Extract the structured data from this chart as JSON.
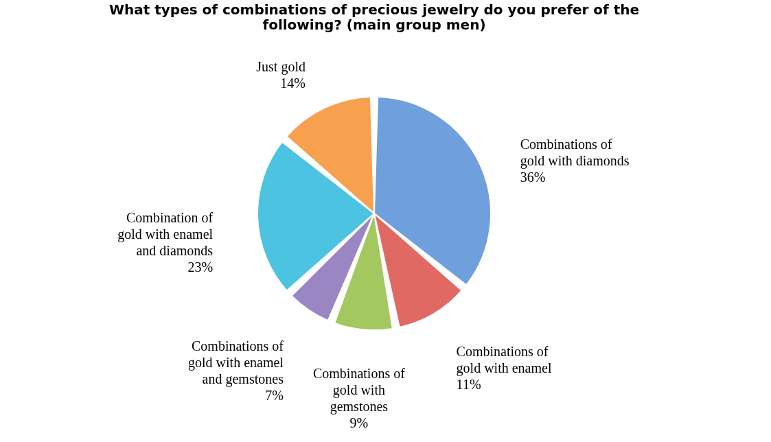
{
  "chart_data": {
    "type": "pie",
    "title": "What types of combinations of precious jewelry do you prefer of the following? (main group men)",
    "categories": [
      "Combinations of gold with diamonds",
      "Combinations of gold with enamel",
      "Combinations of gold with gemstones",
      "Combinations of gold with enamel and gemstones",
      "Combination of gold with enamel and diamonds",
      "Just gold"
    ],
    "values": [
      36,
      11,
      9,
      7,
      23,
      14
    ],
    "colors": [
      "#6f9fdc",
      "#e06a63",
      "#a3c85f",
      "#9b86c4",
      "#4cc3e0",
      "#f7a04e"
    ],
    "value_labels": [
      "36%",
      "11%",
      "9%",
      "7%",
      "23%",
      "14%"
    ],
    "legend": false
  }
}
